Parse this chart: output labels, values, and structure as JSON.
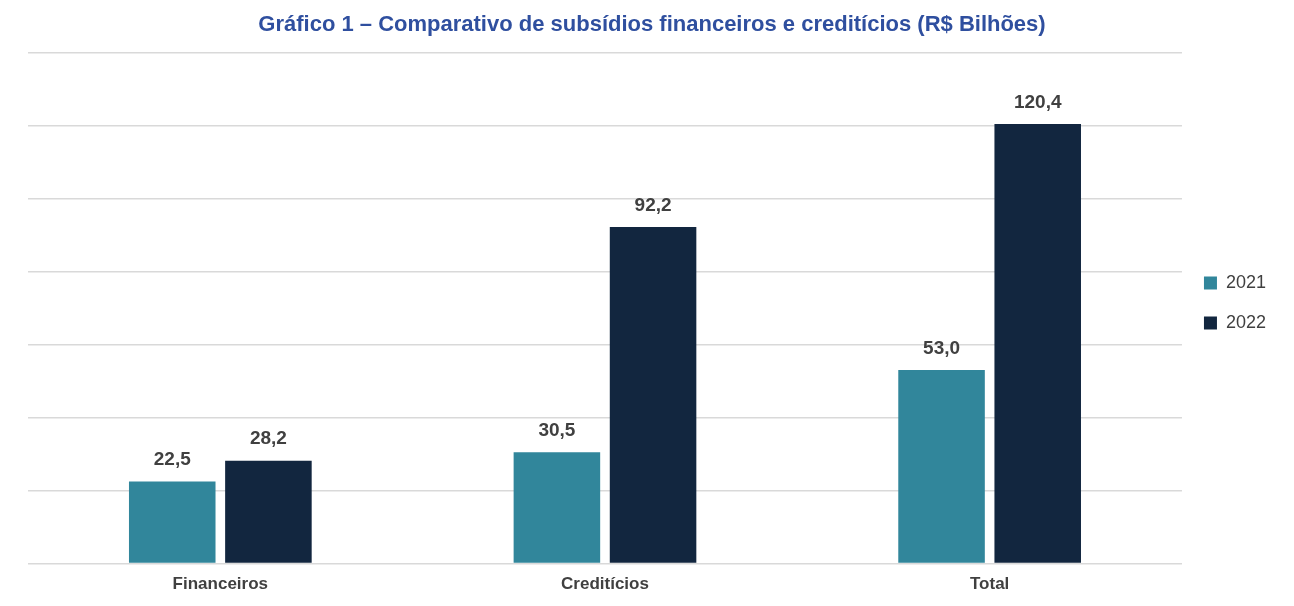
{
  "chart_data": {
    "type": "bar",
    "title": "Gráfico 1 – Comparativo de subsídios financeiros e creditícios (R$ Bilhões)",
    "categories": [
      "Financeiros",
      "Creditícios",
      "Total"
    ],
    "series": [
      {
        "name": "2021",
        "color": "#31869b",
        "values": [
          22.5,
          30.5,
          53.0
        ],
        "value_labels": [
          "22,5",
          "30,5",
          "53,0"
        ]
      },
      {
        "name": "2022",
        "color": "#12263f",
        "values": [
          28.2,
          92.2,
          120.4
        ],
        "value_labels": [
          "28,2",
          "92,2",
          "120,4"
        ]
      }
    ],
    "grid": "y",
    "legend": "right",
    "tick_labels": "x"
  }
}
